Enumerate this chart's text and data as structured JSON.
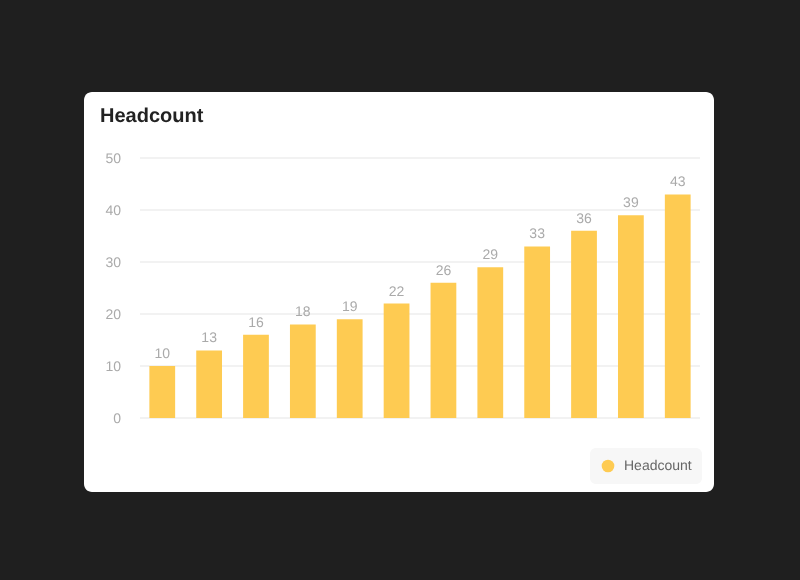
{
  "chart_data": {
    "type": "bar",
    "title": "Headcount",
    "categories": [
      null,
      null,
      null,
      null,
      null,
      null,
      null,
      null,
      null,
      null,
      null,
      null
    ],
    "series": [
      {
        "name": "Headcount",
        "color": "#fecb52",
        "values": [
          10,
          13,
          16,
          18,
          19,
          22,
          26,
          29,
          33,
          36,
          39,
          43
        ]
      }
    ],
    "ylim": [
      0,
      50
    ],
    "yticks": [
      0,
      10,
      20,
      30,
      40,
      50
    ],
    "grid": "y",
    "legend": "bottom right",
    "data_labels": true,
    "tick_labels": "y"
  }
}
